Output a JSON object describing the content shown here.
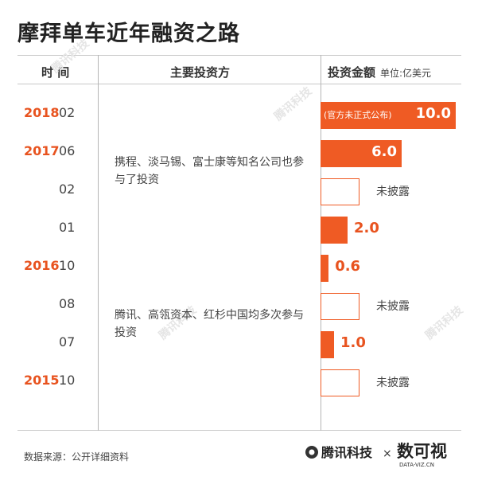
{
  "title": "摩拜单车近年融资之路",
  "headers": {
    "time": "时 间",
    "investors": "主要投资方",
    "amount": "投资金额",
    "unit": "单位:亿美元"
  },
  "chart_data": {
    "type": "bar",
    "orientation": "horizontal",
    "unit": "亿美元",
    "rows": [
      {
        "year": "2018",
        "month": "02",
        "value": 10.0,
        "label": "10.0",
        "note": "(官方未正式公布)"
      },
      {
        "year": "2017",
        "month": "06",
        "value": 6.0,
        "label": "6.0"
      },
      {
        "year": "",
        "month": "02",
        "value": null,
        "label": "未披露"
      },
      {
        "year": "",
        "month": "01",
        "value": 2.0,
        "label": "2.0"
      },
      {
        "year": "2016",
        "month": "10",
        "value": 0.6,
        "label": "0.6"
      },
      {
        "year": "",
        "month": "08",
        "value": null,
        "label": "未披露"
      },
      {
        "year": "",
        "month": "07",
        "value": 1.0,
        "label": "1.0"
      },
      {
        "year": "2015",
        "month": "10",
        "value": null,
        "label": "未披露"
      }
    ],
    "investor_groups": [
      {
        "text": "携程、淡马锡、富士康等知名公司也参与了投资"
      },
      {
        "text": "腾讯、高瓴资本、红杉中国均多次参与投资"
      }
    ],
    "xlim": [
      0,
      10
    ]
  },
  "footer": {
    "source": "数据来源：公开详细资料",
    "brand1": "腾讯科技",
    "times": "×",
    "brand2": "数可视",
    "brand2_sub": "DATA-VIZ.CN"
  },
  "watermark": "腾讯科技",
  "colors": {
    "accent": "#ef5b24",
    "accent_text": "#e8531f"
  }
}
